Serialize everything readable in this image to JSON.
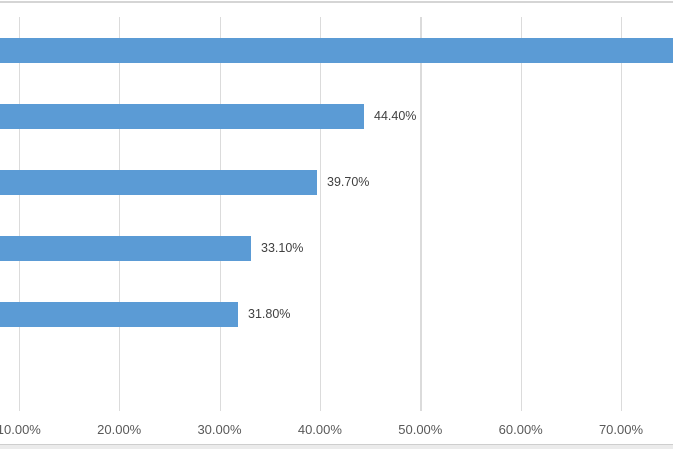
{
  "window": {
    "top_edge_color": "#d5d5d5",
    "bottom_strip_color": "#ebebeb",
    "bottom_strip_border_color": "#cecece",
    "background": "#ffffff"
  },
  "chart_data": {
    "type": "bar",
    "orientation": "horizontal",
    "title": "",
    "xlabel": "",
    "ylabel": "",
    "legend": "none",
    "grid": "vertical-on",
    "category_axis_labels_visible": false,
    "bar_color": "#5b9bd5",
    "gridline_color": "#dbdbdb",
    "tick_label_color": "#595959",
    "data_label_color": "#404040",
    "x_axis": {
      "min_pct": 0,
      "tick_step_pct": 10,
      "ticks": [
        {
          "value_pct": 10,
          "label": "10.00%"
        },
        {
          "value_pct": 20,
          "label": "20.00%"
        },
        {
          "value_pct": 30,
          "label": "30.00%"
        },
        {
          "value_pct": 40,
          "label": "40.00%"
        },
        {
          "value_pct": 50,
          "label": "50.00%"
        },
        {
          "value_pct": 60,
          "label": "60.00%"
        },
        {
          "value_pct": 70,
          "label": "70.00%"
        }
      ]
    },
    "bars": [
      {
        "value_pct": null,
        "label": "",
        "clipped_at_right_edge": true
      },
      {
        "value_pct": 44.4,
        "label": "44.40%",
        "clipped_at_right_edge": false
      },
      {
        "value_pct": 39.7,
        "label": "39.70%",
        "clipped_at_right_edge": false
      },
      {
        "value_pct": 33.1,
        "label": "33.10%",
        "clipped_at_right_edge": false
      },
      {
        "value_pct": 31.8,
        "label": "31.80%",
        "clipped_at_right_edge": false
      }
    ]
  }
}
